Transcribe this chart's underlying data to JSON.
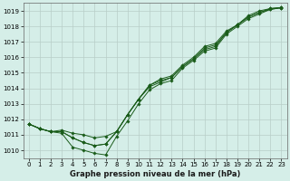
{
  "xlabel": "Graphe pression niveau de la mer (hPa)",
  "ylim": [
    1009.5,
    1019.5
  ],
  "xlim": [
    -0.5,
    23.5
  ],
  "yticks": [
    1010,
    1011,
    1012,
    1013,
    1014,
    1015,
    1016,
    1017,
    1018,
    1019
  ],
  "xticks": [
    0,
    1,
    2,
    3,
    4,
    5,
    6,
    7,
    8,
    9,
    10,
    11,
    12,
    13,
    14,
    15,
    16,
    17,
    18,
    19,
    20,
    21,
    22,
    23
  ],
  "bg_color": "#d5eee8",
  "grid_color": "#b8cec8",
  "line_color": "#1a5c1a",
  "series": [
    [
      1011.7,
      1011.4,
      1011.2,
      1011.1,
      1010.2,
      1010.0,
      1009.8,
      1009.7,
      1010.9,
      1011.9,
      1013.0,
      1013.9,
      1014.3,
      1014.5,
      1015.3,
      1015.8,
      1016.4,
      1016.6,
      1017.5,
      1018.0,
      1018.5,
      1018.8,
      1019.1,
      1019.2
    ],
    [
      1011.7,
      1011.4,
      1011.2,
      1011.2,
      1010.8,
      1010.5,
      1010.3,
      1010.4,
      1011.2,
      1012.3,
      1013.3,
      1014.1,
      1014.4,
      1014.7,
      1015.4,
      1015.9,
      1016.5,
      1016.7,
      1017.6,
      1018.1,
      1018.6,
      1018.9,
      1019.1,
      1019.2
    ],
    [
      1011.7,
      1011.4,
      1011.2,
      1011.2,
      1010.8,
      1010.5,
      1010.3,
      1010.4,
      1011.2,
      1012.3,
      1013.3,
      1014.2,
      1014.5,
      1014.7,
      1015.4,
      1015.9,
      1016.6,
      1016.8,
      1017.6,
      1018.1,
      1018.6,
      1018.9,
      1019.15,
      1019.22
    ],
    [
      1011.7,
      1011.4,
      1011.2,
      1011.3,
      1011.1,
      1011.0,
      1010.8,
      1010.9,
      1011.2,
      1012.3,
      1013.3,
      1014.2,
      1014.6,
      1014.8,
      1015.5,
      1016.0,
      1016.7,
      1016.9,
      1017.7,
      1018.1,
      1018.7,
      1019.0,
      1019.15,
      1019.22
    ]
  ],
  "marker": "D",
  "markersize": 1.8,
  "linewidth": 0.7,
  "tick_fontsize": 5,
  "xlabel_fontsize": 6,
  "xlabel_fontweight": "bold"
}
